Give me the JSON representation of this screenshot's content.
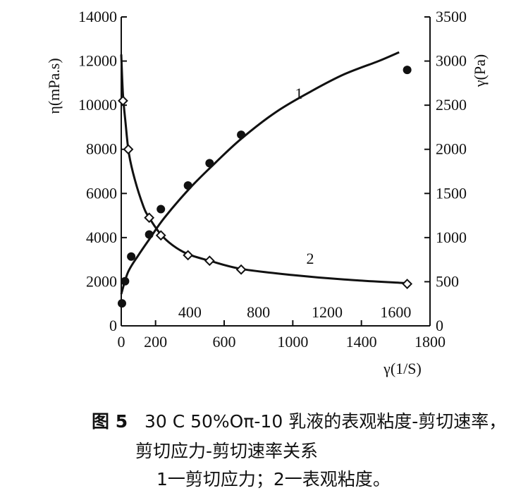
{
  "chart_data": {
    "type": "line",
    "x_bottom": {
      "label": "γ(1/S)",
      "ticks": [
        0,
        200,
        600,
        1000,
        1400,
        1800
      ],
      "range": [
        0,
        1800
      ]
    },
    "x_inner": {
      "ticks": [
        400,
        800,
        1200,
        1600
      ]
    },
    "y_left": {
      "label": "η(mPa.s)",
      "ticks": [
        0,
        2000,
        4000,
        6000,
        8000,
        10000,
        12000,
        14000
      ],
      "range": [
        0,
        14000
      ]
    },
    "y_right": {
      "label": "γ(Pa)",
      "ticks": [
        0,
        500,
        1000,
        1500,
        2000,
        2500,
        3000,
        3500
      ],
      "range": [
        0,
        3500
      ]
    },
    "series": [
      {
        "name": "1",
        "axis": "right",
        "marker": "filled-circle",
        "points": [
          [
            4,
            255
          ],
          [
            22,
            505
          ],
          [
            58,
            785
          ],
          [
            163,
            1035
          ],
          [
            231,
            1322
          ],
          [
            389,
            1590
          ],
          [
            515,
            1843
          ],
          [
            699,
            2165
          ],
          [
            1667,
            2900
          ]
        ],
        "curve": [
          [
            0,
            360
          ],
          [
            40,
            610
          ],
          [
            100,
            800
          ],
          [
            163,
            980
          ],
          [
            250,
            1220
          ],
          [
            400,
            1560
          ],
          [
            550,
            1850
          ],
          [
            700,
            2120
          ],
          [
            900,
            2420
          ],
          [
            1100,
            2650
          ],
          [
            1300,
            2850
          ],
          [
            1500,
            3000
          ],
          [
            1620,
            3100
          ]
        ]
      },
      {
        "name": "2",
        "axis": "left",
        "marker": "open-diamond",
        "points": [
          [
            10,
            10200
          ],
          [
            41,
            8000
          ],
          [
            163,
            4900
          ],
          [
            231,
            4100
          ],
          [
            389,
            3200
          ],
          [
            515,
            2950
          ],
          [
            699,
            2550
          ],
          [
            1667,
            1900
          ]
        ],
        "curve": [
          [
            0,
            12300
          ],
          [
            10,
            10500
          ],
          [
            25,
            9200
          ],
          [
            45,
            7800
          ],
          [
            80,
            6600
          ],
          [
            130,
            5400
          ],
          [
            163,
            4900
          ],
          [
            230,
            4150
          ],
          [
            300,
            3650
          ],
          [
            389,
            3250
          ],
          [
            515,
            2950
          ],
          [
            700,
            2580
          ],
          [
            1000,
            2300
          ],
          [
            1300,
            2100
          ],
          [
            1667,
            1930
          ]
        ]
      }
    ]
  },
  "caption": {
    "fig_label": "图 5",
    "line1": "30 C 50%Oπ-10 乳液的表观粘度-剪切速率，",
    "line2": "剪切应力-剪切速率关系",
    "line3": "1一剪切应力；2一表观粘度。"
  }
}
